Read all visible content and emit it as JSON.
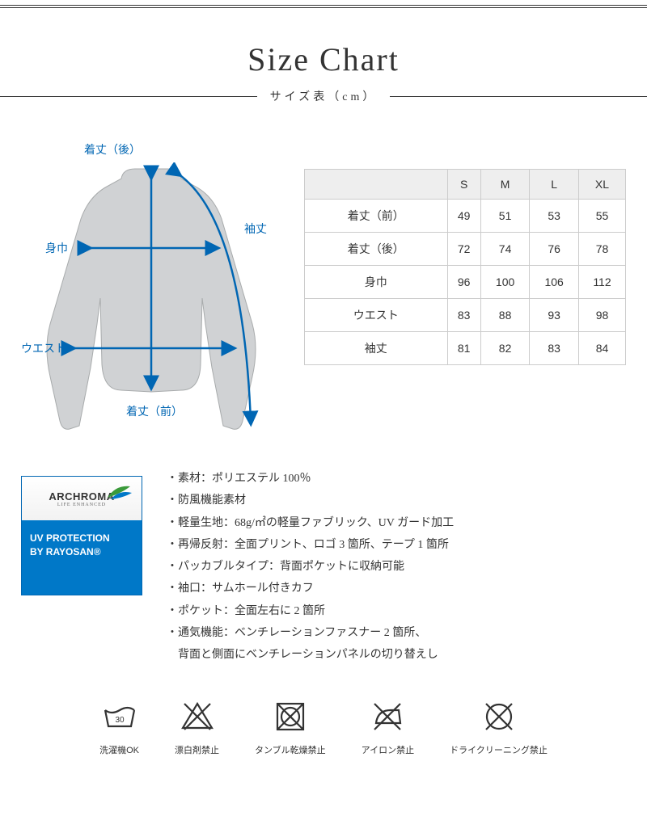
{
  "title": "Size Chart",
  "subtitle": "サイズ表（cm）",
  "colors": {
    "arrow": "#0066b3",
    "text": "#333333",
    "border": "#cccccc",
    "header_bg": "#eeeeee",
    "badge_blue": "#0078c8",
    "jacket": "#d0d2d4"
  },
  "diagram_labels": {
    "back_length": "着丈（後）",
    "sleeve_length": "袖丈",
    "width": "身巾",
    "waist": "ウエスト",
    "front_length": "着丈（前）"
  },
  "size_table": {
    "columns": [
      "",
      "S",
      "M",
      "L",
      "XL"
    ],
    "rows": [
      [
        "着丈（前）",
        "49",
        "51",
        "53",
        "55"
      ],
      [
        "着丈（後）",
        "72",
        "74",
        "76",
        "78"
      ],
      [
        "身巾",
        "96",
        "100",
        "106",
        "112"
      ],
      [
        "ウエスト",
        "83",
        "88",
        "93",
        "98"
      ],
      [
        "袖丈",
        "81",
        "82",
        "83",
        "84"
      ]
    ]
  },
  "badge": {
    "brand": "ARCHROMA",
    "tagline": "LIFE ENHANCED",
    "line1": "UV PROTECTION",
    "line2": "BY RAYOSAN®"
  },
  "bullets": [
    "・素材：ポリエステル 100％",
    "・防風機能素材",
    "・軽量生地：68g/㎡の軽量ファブリック、UV ガード加工",
    "・再帰反射：全面プリント、ロゴ 3 箇所、テープ 1 箇所",
    "・パッカブルタイプ：背面ポケットに収納可能",
    "・袖口：サムホール付きカフ",
    "・ポケット：全面左右に 2 箇所",
    "・通気機能：ベンチレーションファスナー 2 箇所、",
    "　背面と側面にベンチレーションパネルの切り替えし"
  ],
  "care": [
    {
      "icon": "wash",
      "label": "洗濯機OK",
      "num": "30"
    },
    {
      "icon": "bleach",
      "label": "漂白剤禁止"
    },
    {
      "icon": "tumble",
      "label": "タンブル乾燥禁止"
    },
    {
      "icon": "iron",
      "label": "アイロン禁止"
    },
    {
      "icon": "dryclean",
      "label": "ドライクリーニング禁止"
    }
  ]
}
